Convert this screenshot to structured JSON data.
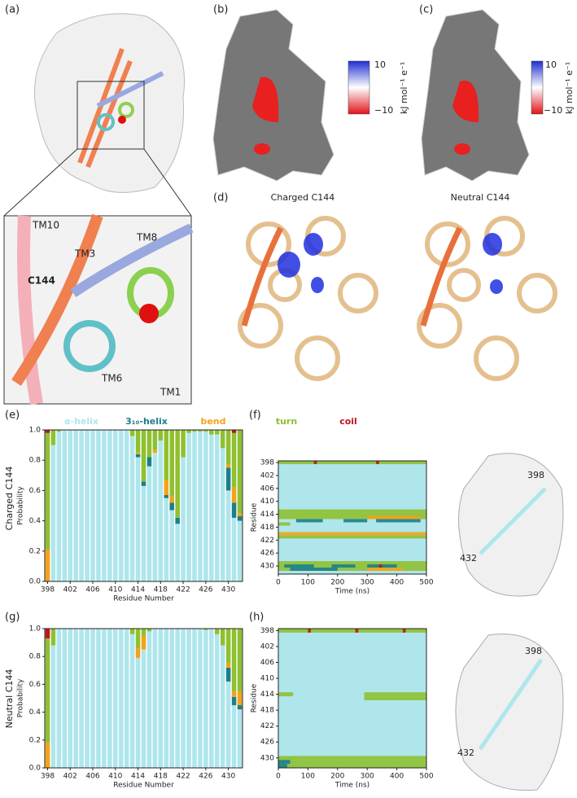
{
  "panels": {
    "a": {
      "label": "(a)",
      "helices": [
        "TM10",
        "TM3",
        "TM8",
        "C144",
        "TM6",
        "TM1"
      ]
    },
    "b": {
      "label": "(b)",
      "colorbar": {
        "max": "10",
        "min": "−10",
        "unit": "kJ mol⁻¹ e⁻¹"
      }
    },
    "c": {
      "label": "(c)",
      "colorbar": {
        "max": "10",
        "min": "−10",
        "unit": "kJ mol⁻¹ e⁻¹"
      }
    },
    "d": {
      "label": "(d)",
      "titles": [
        "Charged C144",
        "Neutral C144"
      ]
    },
    "e": {
      "label": "(e)",
      "row_label": "Charged C144"
    },
    "f": {
      "label": "(f)",
      "structure": [
        "398",
        "432"
      ]
    },
    "g": {
      "label": "(g)",
      "row_label": "Neutral C144"
    },
    "h": {
      "label": "(h)",
      "structure": [
        "398",
        "432"
      ]
    }
  },
  "chart_data": [
    {
      "type": "stacked_bar",
      "xlabel": "Residue Number",
      "ylabel": "Probability",
      "x": [
        398,
        399,
        400,
        401,
        402,
        403,
        404,
        405,
        406,
        407,
        408,
        409,
        410,
        411,
        412,
        413,
        414,
        415,
        416,
        417,
        418,
        419,
        420,
        421,
        422,
        423,
        424,
        425,
        426,
        427,
        428,
        429,
        430,
        431,
        432
      ],
      "xticks": [
        398,
        402,
        406,
        410,
        414,
        418,
        422,
        426,
        430
      ],
      "ylim": [
        0,
        1
      ],
      "yticks": [
        {
          "value": 0,
          "label": "0.0"
        },
        0.2,
        0.4,
        0.6,
        0.8,
        {
          "value": 1,
          "label": "1.0"
        }
      ],
      "series": [
        {
          "name": "α-helix",
          "color": "#aee6ec",
          "values": [
            0,
            0.9,
            0.99,
            1,
            1,
            1,
            1,
            1,
            1,
            1,
            1,
            1,
            1,
            1,
            1,
            0.96,
            0.82,
            0.63,
            0.76,
            0.85,
            0.93,
            0.55,
            0.47,
            0.38,
            0.82,
            0.98,
            0.99,
            0.99,
            0.99,
            0.97,
            0.97,
            0.88,
            0.6,
            0.42,
            0.4
          ]
        },
        {
          "name": "3₁₀-helix",
          "color": "#1b7f8c",
          "values": [
            0,
            0,
            0,
            0,
            0,
            0,
            0,
            0,
            0,
            0,
            0,
            0,
            0,
            0,
            0,
            0,
            0.02,
            0.03,
            0.06,
            0,
            0,
            0.02,
            0.05,
            0.04,
            0,
            0,
            0,
            0,
            0,
            0,
            0,
            0,
            0.15,
            0.1,
            0.03
          ]
        },
        {
          "name": "bend",
          "color": "#f5a21b",
          "values": [
            0.21,
            0,
            0,
            0,
            0,
            0,
            0,
            0,
            0,
            0,
            0,
            0,
            0,
            0,
            0,
            0,
            0.01,
            0,
            0,
            0.02,
            0,
            0.1,
            0.04,
            0,
            0,
            0,
            0,
            0,
            0,
            0,
            0,
            0,
            0.02,
            0.1,
            0.02
          ]
        },
        {
          "name": "turn",
          "color": "#8fc031",
          "values": [
            0.77,
            0.1,
            0.01,
            0,
            0,
            0,
            0,
            0,
            0,
            0,
            0,
            0,
            0,
            0,
            0,
            0.04,
            0.15,
            0.34,
            0.18,
            0.13,
            0.07,
            0.33,
            0.44,
            0.58,
            0.18,
            0.02,
            0.01,
            0.01,
            0.01,
            0.03,
            0.03,
            0.12,
            0.23,
            0.36,
            0.55
          ]
        },
        {
          "name": "coil",
          "color": "#c0141e",
          "values": [
            0.02,
            0,
            0,
            0,
            0,
            0,
            0,
            0,
            0,
            0,
            0,
            0,
            0,
            0,
            0,
            0,
            0,
            0,
            0,
            0,
            0,
            0,
            0,
            0,
            0,
            0,
            0,
            0,
            0,
            0,
            0,
            0,
            0,
            0.02,
            0
          ]
        }
      ]
    },
    {
      "type": "heatmap",
      "xlabel": "Time (ns)",
      "ylabel": "Residue",
      "xlim": [
        0,
        500
      ],
      "xticks": [
        0,
        100,
        200,
        300,
        400,
        500
      ],
      "ylim": [
        397.5,
        432.5
      ],
      "yticks": [
        398,
        402,
        406,
        410,
        414,
        418,
        422,
        426,
        430
      ],
      "background": "#aee6ec",
      "series": [
        {
          "color": "#8fc031",
          "cells": [
            [
              398,
              0,
              500
            ],
            [
              413,
              0,
              500
            ],
            [
              414,
              0,
              500
            ],
            [
              415,
              0,
              500
            ],
            [
              417,
              0,
              40
            ],
            [
              421,
              0,
              500
            ],
            [
              429,
              0,
              500
            ],
            [
              430,
              0,
              500
            ],
            [
              431,
              0,
              500
            ]
          ]
        },
        {
          "color": "#1b7f8c",
          "cells": [
            [
              416,
              60,
              150
            ],
            [
              416,
              220,
              300
            ],
            [
              416,
              330,
              480
            ],
            [
              430,
              20,
              120
            ],
            [
              430,
              180,
              260
            ],
            [
              430,
              300,
              400
            ],
            [
              431,
              40,
              200
            ]
          ]
        },
        {
          "color": "#f5a21b",
          "cells": [
            [
              415,
              300,
              480
            ],
            [
              420,
              0,
              500
            ],
            [
              431,
              300,
              420
            ]
          ]
        },
        {
          "color": "#c0141e",
          "cells": [
            [
              398,
              120,
              130
            ],
            [
              398,
              330,
              340
            ],
            [
              430,
              340,
              350
            ]
          ]
        }
      ]
    },
    {
      "type": "stacked_bar",
      "xlabel": "Residue Number",
      "ylabel": "Probability",
      "x": [
        398,
        399,
        400,
        401,
        402,
        403,
        404,
        405,
        406,
        407,
        408,
        409,
        410,
        411,
        412,
        413,
        414,
        415,
        416,
        417,
        418,
        419,
        420,
        421,
        422,
        423,
        424,
        425,
        426,
        427,
        428,
        429,
        430,
        431,
        432
      ],
      "xticks": [
        398,
        402,
        406,
        410,
        414,
        418,
        422,
        426,
        430
      ],
      "ylim": [
        0,
        1
      ],
      "yticks": [
        {
          "value": 0,
          "label": "0.0"
        },
        0.2,
        0.4,
        0.6,
        0.8,
        {
          "value": 1,
          "label": "1.0"
        }
      ],
      "series": [
        {
          "color": "#aee6ec",
          "values": [
            0,
            0.88,
            1,
            1,
            1,
            1,
            1,
            1,
            1,
            1,
            1,
            1,
            1,
            1,
            1,
            0.96,
            0.79,
            0.85,
            0.98,
            1,
            1,
            1,
            1,
            1,
            1,
            1,
            1,
            1,
            0.99,
            1,
            0.96,
            0.88,
            0.62,
            0.45,
            0.42
          ]
        },
        {
          "color": "#1b7f8c",
          "values": [
            0,
            0,
            0,
            0,
            0,
            0,
            0,
            0,
            0,
            0,
            0,
            0,
            0,
            0,
            0,
            0,
            0,
            0,
            0,
            0,
            0,
            0,
            0,
            0,
            0,
            0,
            0,
            0,
            0,
            0,
            0,
            0,
            0.1,
            0.06,
            0.03
          ]
        },
        {
          "color": "#f5a21b",
          "values": [
            0.18,
            0,
            0,
            0,
            0,
            0,
            0,
            0,
            0,
            0,
            0,
            0,
            0,
            0,
            0,
            0,
            0.07,
            0.1,
            0,
            0,
            0,
            0,
            0,
            0,
            0,
            0,
            0,
            0,
            0,
            0,
            0,
            0,
            0.03,
            0.04,
            0.1
          ]
        },
        {
          "color": "#8fc031",
          "values": [
            0.75,
            0.12,
            0,
            0,
            0,
            0,
            0,
            0,
            0,
            0,
            0,
            0,
            0,
            0,
            0,
            0.04,
            0.14,
            0.05,
            0.02,
            0,
            0,
            0,
            0,
            0,
            0,
            0,
            0,
            0,
            0.01,
            0,
            0.04,
            0.12,
            0.25,
            0.45,
            0.45
          ]
        },
        {
          "color": "#c0141e",
          "values": [
            0.07,
            0,
            0,
            0,
            0,
            0,
            0,
            0,
            0,
            0,
            0,
            0,
            0,
            0,
            0,
            0,
            0,
            0,
            0,
            0,
            0,
            0,
            0,
            0,
            0,
            0,
            0,
            0,
            0,
            0,
            0,
            0,
            0,
            0,
            0
          ]
        }
      ]
    },
    {
      "type": "heatmap",
      "xlabel": "Time (ns)",
      "ylabel": "Residue",
      "xlim": [
        0,
        500
      ],
      "xticks": [
        0,
        100,
        200,
        300,
        400,
        500
      ],
      "ylim": [
        397.5,
        432.5
      ],
      "yticks": [
        398,
        402,
        406,
        410,
        414,
        418,
        422,
        426,
        430
      ],
      "background": "#aee6ec",
      "series": [
        {
          "color": "#8fc031",
          "cells": [
            [
              398,
              0,
              500
            ],
            [
              414,
              0,
              50
            ],
            [
              414,
              290,
              500
            ],
            [
              415,
              290,
              500
            ],
            [
              430,
              0,
              500
            ],
            [
              431,
              0,
              500
            ],
            [
              432,
              0,
              500
            ]
          ]
        },
        {
          "color": "#1b7f8c",
          "cells": [
            [
              431,
              0,
              40
            ],
            [
              432,
              0,
              30
            ]
          ]
        },
        {
          "color": "#c0141e",
          "cells": [
            [
              398,
              100,
              110
            ],
            [
              398,
              260,
              270
            ],
            [
              398,
              420,
              430
            ]
          ]
        }
      ]
    }
  ]
}
